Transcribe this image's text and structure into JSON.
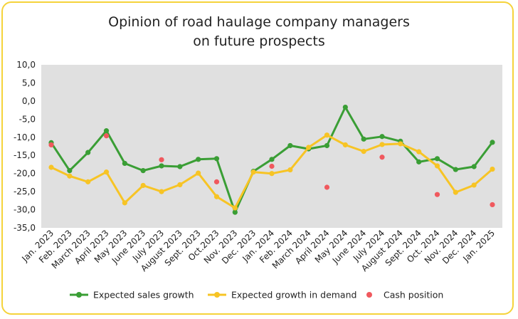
{
  "title_lines": [
    "Opinion of road haulage company managers",
    "on future prospects"
  ],
  "colors": {
    "frame": "#f5d33b",
    "plot_bg": "#e0e0e0"
  },
  "chart_data": {
    "type": "line",
    "title": "Opinion of road haulage company managers on future prospects",
    "xlabel": "",
    "ylabel": "",
    "ylim": [
      -35,
      10
    ],
    "y_ticks": [
      10,
      5,
      0,
      -5,
      -10,
      -15,
      -20,
      -25,
      -30,
      -35
    ],
    "y_tick_labels": [
      "10,0",
      "5,0",
      "0,0",
      "-5,0",
      "-10,0",
      "-15,0",
      "-20,0",
      "-25,0",
      "-30,0",
      "-35,0"
    ],
    "grid": false,
    "legend_position": "bottom",
    "categories": [
      "Jan. 2023",
      "Feb. 2023",
      "March 2023",
      "April 2023",
      "May 2023",
      "June 2023",
      "July 2023",
      "August 2023",
      "Sept. 2023",
      "Oct.2023",
      "Nov. 2023",
      "Dec. 2023",
      "Jan. 2024",
      "Feb. 2024",
      "March 2024",
      "April 2024",
      "May 2024",
      "June 2024",
      "July 2024",
      "August 2024",
      "Sept. 2024",
      "Oct. 2024",
      "Nov. 2024",
      "Dec. 2024",
      "Jan. 2025"
    ],
    "series": [
      {
        "name": "Expected sales growth",
        "color": "#3a9e35",
        "kind": "line",
        "values": [
          -11.5,
          -19.2,
          -14.2,
          -8.2,
          -17.2,
          -19.2,
          -17.9,
          -18.1,
          -16.1,
          -15.9,
          -30.7,
          -19.4,
          -16.1,
          -12.3,
          -13.2,
          -12.3,
          -1.7,
          -10.5,
          -9.8,
          -11.1,
          -16.8,
          -15.9,
          -18.9,
          -18.1,
          -11.4
        ]
      },
      {
        "name": "Expected growth in demand",
        "color": "#f7c425",
        "kind": "line",
        "values": [
          -18.3,
          -20.7,
          -22.3,
          -19.6,
          -28.1,
          -23.3,
          -25.0,
          -23.1,
          -19.9,
          -26.4,
          -29.5,
          -19.6,
          -20.0,
          -19.0,
          -12.8,
          -9.4,
          -12.1,
          -13.9,
          -12.0,
          -11.8,
          -14.0,
          -17.9,
          -25.2,
          -23.2,
          -18.8
        ]
      },
      {
        "name": "Cash position",
        "color": "#f0595e",
        "kind": "scatter",
        "values": [
          -12.1,
          null,
          null,
          -9.6,
          null,
          null,
          -16.2,
          null,
          null,
          -22.3,
          null,
          null,
          -18.0,
          null,
          null,
          -23.8,
          null,
          null,
          -15.5,
          null,
          null,
          -25.8,
          null,
          null,
          -28.6
        ]
      }
    ]
  }
}
